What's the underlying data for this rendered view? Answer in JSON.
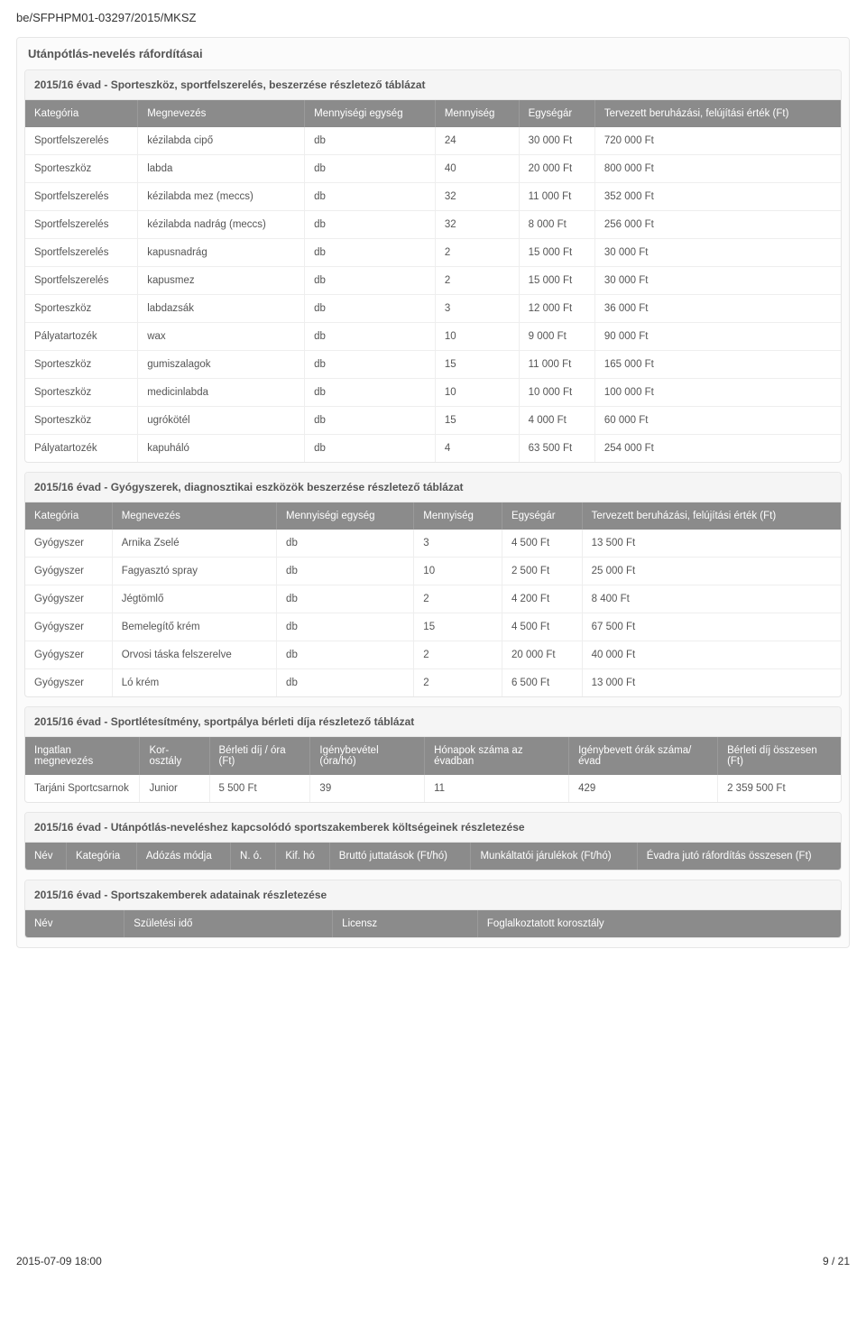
{
  "doc_id": "be/SFPHPM01-03297/2015/MKSZ",
  "section_title": "Utánpótlás-nevelés ráfordításai",
  "table1": {
    "title": "2015/16 évad - Sporteszköz, sportfelszerelés, beszerzése részletező táblázat",
    "columns": [
      "Kategória",
      "Megnevezés",
      "Mennyiségi egység",
      "Mennyiség",
      "Egységár",
      "Tervezett beruházási, felújítási érték (Ft)"
    ],
    "rows": [
      [
        "Sportfelszerelés",
        "kézilabda cipő",
        "db",
        "24",
        "30 000 Ft",
        "720 000 Ft"
      ],
      [
        "Sporteszköz",
        "labda",
        "db",
        "40",
        "20 000 Ft",
        "800 000 Ft"
      ],
      [
        "Sportfelszerelés",
        "kézilabda mez (meccs)",
        "db",
        "32",
        "11 000 Ft",
        "352 000 Ft"
      ],
      [
        "Sportfelszerelés",
        "kézilabda nadrág (meccs)",
        "db",
        "32",
        "8 000 Ft",
        "256 000 Ft"
      ],
      [
        "Sportfelszerelés",
        "kapusnadrág",
        "db",
        "2",
        "15 000 Ft",
        "30 000 Ft"
      ],
      [
        "Sportfelszerelés",
        "kapusmez",
        "db",
        "2",
        "15 000 Ft",
        "30 000 Ft"
      ],
      [
        "Sporteszköz",
        "labdazsák",
        "db",
        "3",
        "12 000 Ft",
        "36 000 Ft"
      ],
      [
        "Pályatartozék",
        "wax",
        "db",
        "10",
        "9 000 Ft",
        "90 000 Ft"
      ],
      [
        "Sporteszköz",
        "gumiszalagok",
        "db",
        "15",
        "11 000 Ft",
        "165 000 Ft"
      ],
      [
        "Sporteszköz",
        "medicinlabda",
        "db",
        "10",
        "10 000 Ft",
        "100 000 Ft"
      ],
      [
        "Sporteszköz",
        "ugrókötél",
        "db",
        "15",
        "4 000 Ft",
        "60 000 Ft"
      ],
      [
        "Pályatartozék",
        "kapuháló",
        "db",
        "4",
        "63 500 Ft",
        "254 000 Ft"
      ]
    ]
  },
  "table2": {
    "title": "2015/16 évad - Gyógyszerek, diagnosztikai eszközök beszerzése részletező táblázat",
    "columns": [
      "Kategória",
      "Megnevezés",
      "Mennyiségi egység",
      "Mennyiség",
      "Egységár",
      "Tervezett beruházási, felújítási érték (Ft)"
    ],
    "rows": [
      [
        "Gyógyszer",
        "Arnika Zselé",
        "db",
        "3",
        "4 500 Ft",
        "13 500 Ft"
      ],
      [
        "Gyógyszer",
        "Fagyasztó spray",
        "db",
        "10",
        "2 500 Ft",
        "25 000 Ft"
      ],
      [
        "Gyógyszer",
        "Jégtömlő",
        "db",
        "2",
        "4 200 Ft",
        "8 400 Ft"
      ],
      [
        "Gyógyszer",
        "Bemelegítő krém",
        "db",
        "15",
        "4 500 Ft",
        "67 500 Ft"
      ],
      [
        "Gyógyszer",
        "Orvosi táska felszerelve",
        "db",
        "2",
        "20 000 Ft",
        "40 000 Ft"
      ],
      [
        "Gyógyszer",
        "Ló krém",
        "db",
        "2",
        "6 500 Ft",
        "13 000 Ft"
      ]
    ]
  },
  "table3": {
    "title": "2015/16 évad - Sportlétesítmény, sportpálya bérleti díja részletező táblázat",
    "columns": [
      "Ingatlan megnevezés",
      "Kor-osztály",
      "Bérleti díj / óra (Ft)",
      "Igénybevétel (óra/hó)",
      "Hónapok száma az évadban",
      "Igénybevett órák száma/évad",
      "Bérleti díj összesen (Ft)"
    ],
    "rows": [
      [
        "Tarjáni Sportcsarnok",
        "Junior",
        "5 500 Ft",
        "39",
        "11",
        "429",
        "2 359 500 Ft"
      ]
    ]
  },
  "table4": {
    "title": "2015/16 évad - Utánpótlás-neveléshez kapcsolódó sportszakemberek költségeinek részletezése",
    "columns": [
      "Név",
      "Kategória",
      "Adózás módja",
      "N. ó.",
      "Kif. hó",
      "Bruttó juttatások (Ft/hó)",
      "Munkáltatói járulékok (Ft/hó)",
      "Évadra jutó ráfordítás összesen (Ft)"
    ],
    "rows": []
  },
  "table5": {
    "title": "2015/16 évad - Sportszakemberek adatainak részletezése",
    "columns": [
      "Név",
      "Születési idő",
      "Licensz",
      "Foglalkoztatott korosztály"
    ],
    "rows": []
  },
  "footer": {
    "timestamp": "2015-07-09 18:00",
    "page": "9 / 21"
  }
}
